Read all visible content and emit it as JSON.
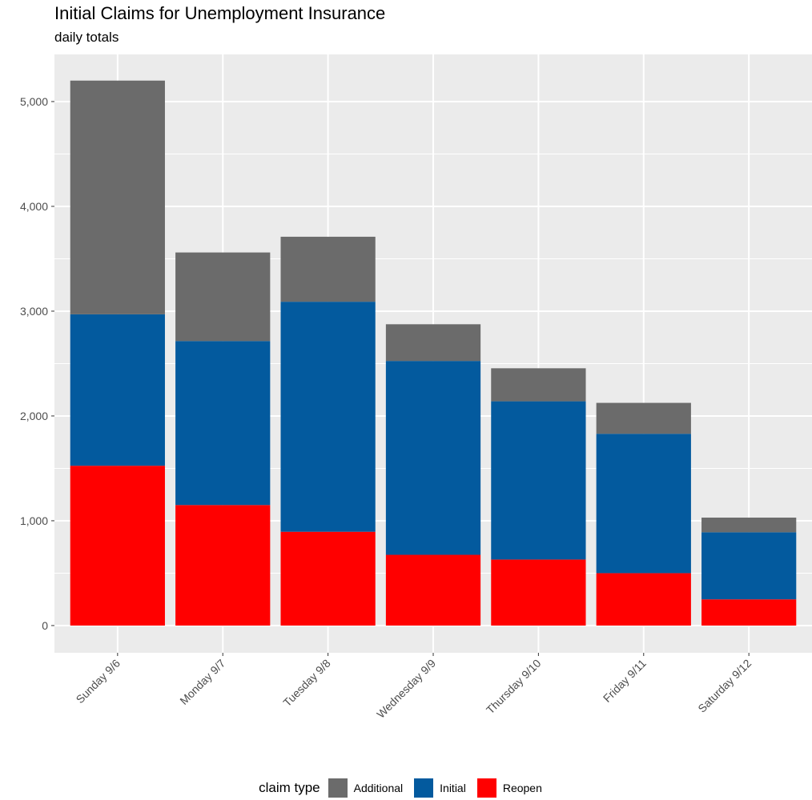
{
  "chart_data": {
    "type": "bar",
    "stacked": true,
    "title": "Initial Claims for Unemployment Insurance",
    "subtitle": "daily totals",
    "xlabel": "",
    "ylabel": "",
    "ylim": [
      -260,
      5450
    ],
    "yticks": [
      0,
      1000,
      2000,
      3000,
      4000,
      5000
    ],
    "ytick_labels": [
      "0",
      "1,000",
      "2,000",
      "3,000",
      "4,000",
      "5,000"
    ],
    "categories": [
      "Sunday 9/6",
      "Monday 9/7",
      "Tuesday 9/8",
      "Wednesday 9/9",
      "Thursday 9/10",
      "Friday 9/11",
      "Saturday 9/12"
    ],
    "series": [
      {
        "name": "Reopen",
        "color": "#ff0000",
        "values": [
          1525,
          1150,
          895,
          675,
          630,
          500,
          250
        ]
      },
      {
        "name": "Initial",
        "color": "#035a9e",
        "values": [
          1445,
          1565,
          2195,
          1850,
          1510,
          1330,
          640
        ]
      },
      {
        "name": "Additional",
        "color": "#6b6b6b",
        "values": [
          2230,
          845,
          620,
          350,
          315,
          295,
          140
        ]
      }
    ],
    "grid": true,
    "legend": {
      "title": "claim type",
      "position": "bottom",
      "order": [
        "Additional",
        "Initial",
        "Reopen"
      ]
    }
  }
}
